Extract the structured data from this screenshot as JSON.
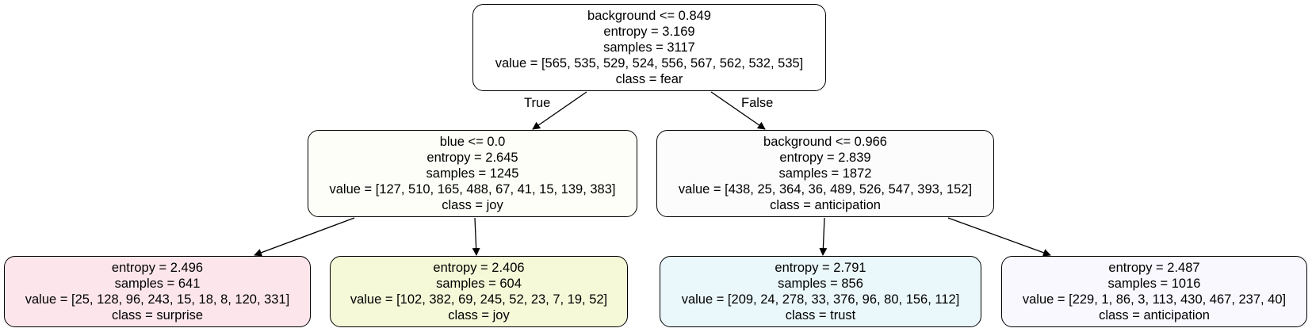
{
  "nodes": {
    "root": {
      "condition": "background <= 0.849",
      "entropy": "entropy = 3.169",
      "samples": "samples = 3117",
      "value": "value = [565, 535, 529, 524, 556, 567, 562, 532, 535]",
      "class": "class = fear",
      "fill": "#ffffff"
    },
    "left": {
      "condition": "blue <= 0.0",
      "entropy": "entropy = 2.645",
      "samples": "samples = 1245",
      "value": "value = [127, 510, 165, 488, 67, 41, 15, 139, 383]",
      "class": "class = joy",
      "fill": "#fefef8"
    },
    "right": {
      "condition": "background <= 0.966",
      "entropy": "entropy = 2.839",
      "samples": "samples = 1872",
      "value": "value = [438, 25, 364, 36, 489, 526, 547, 393, 152]",
      "class": "class = anticipation",
      "fill": "#fcfcfc"
    },
    "ll": {
      "entropy": "entropy = 2.496",
      "samples": "samples = 641",
      "value": "value = [25, 128, 96, 243, 15, 18, 8, 120, 331]",
      "class": "class = surprise",
      "fill": "#fce6ec"
    },
    "lr": {
      "entropy": "entropy = 2.406",
      "samples": "samples = 604",
      "value": "value = [102, 382, 69, 245, 52, 23, 7, 19, 52]",
      "class": "class = joy",
      "fill": "#f5f9d8"
    },
    "rl": {
      "entropy": "entropy = 2.791",
      "samples": "samples = 856",
      "value": "value = [209, 24, 278, 33, 376, 96, 80, 156, 112]",
      "class": "class = trust",
      "fill": "#ebf8fb"
    },
    "rr": {
      "entropy": "entropy = 2.487",
      "samples": "samples = 1016",
      "value": "value = [229, 1, 86, 3, 113, 430, 467, 237, 40]",
      "class": "class = anticipation",
      "fill": "#f9f8fe"
    }
  },
  "edge_labels": {
    "true": "True",
    "false": "False"
  },
  "edge_color": "#000000"
}
